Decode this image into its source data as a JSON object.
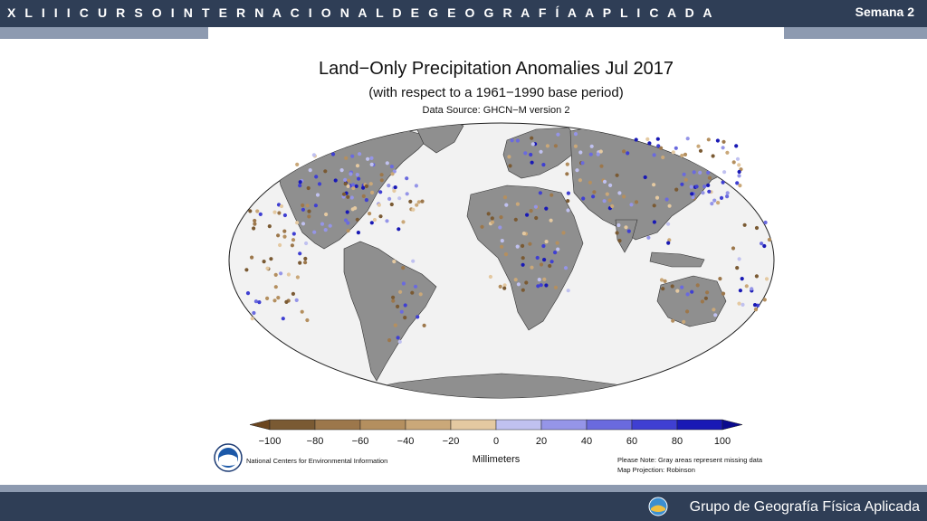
{
  "header": {
    "title": "X L I I I C U R S O I N T E R N A C I O N A L D E G E O G R A F Í A A P L I C A D A",
    "week": "Semana 2"
  },
  "slide": {
    "title": "Land−Only Precipitation Anomalies Jul 2017",
    "subtitle": "(with respect to a 1961−1990 base period)",
    "source": "Data Source: GHCN−M version 2"
  },
  "legend": {
    "ticks": [
      "−100",
      "−80",
      "−60",
      "−40",
      "−20",
      "0",
      "20",
      "40",
      "60",
      "80",
      "100"
    ],
    "unit": "Millimeters",
    "colors": [
      "#7a5a33",
      "#9c774b",
      "#b48f5f",
      "#caa879",
      "#e4c9a1",
      "#c0c1f0",
      "#9595e8",
      "#6a6ade",
      "#3f3fd2",
      "#1919b5"
    ],
    "arrow_left_color": "#6b4620",
    "arrow_right_color": "#0a0a8e"
  },
  "footer": {
    "agency": "National Centers for Environmental Information",
    "note": "Please Note: Gray areas represent missing data",
    "projection": "Map Projection: Robinson"
  },
  "bottom": {
    "org": "Grupo de Geografía Física Aplicada"
  }
}
